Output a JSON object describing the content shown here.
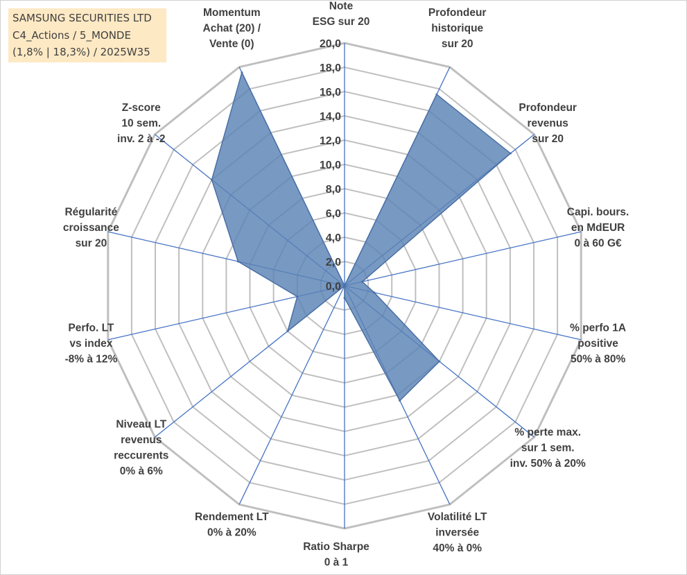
{
  "title_box": {
    "line1": "SAMSUNG SECURITIES LTD",
    "line2": "C4_Actions / 5_MONDE",
    "line3": "(1,8% | 18,3%) / 2025W35"
  },
  "colors": {
    "grid": "#bfbfbf",
    "spoke": "#4472c4",
    "series_fill": "#5a82b4",
    "series_stroke": "#4a6fa5",
    "text": "#404040",
    "title_bg": "#fde9c4"
  },
  "chart_data": {
    "type": "radar",
    "title": "",
    "rmin": 0,
    "rmax": 20,
    "grid_step": 2,
    "tick_labels": [
      "0,0",
      "2,0",
      "4,0",
      "6,0",
      "8,0",
      "10,0",
      "12,0",
      "14,0",
      "16,0",
      "18,0",
      "20,0"
    ],
    "categories": [
      "Note\nESG sur 20",
      "Profondeur\nhistorique\nsur 20",
      "Profondeur\nrevenus\nsur 20",
      "Capi. bours.\nen MdEUR\n0 à 60 G€",
      "% perfo 1A\npositive\n50% à 80%",
      "% perte max.\nsur 1 sem.\ninv. 50% à 20%",
      "Volatilité LT\ninversée\n40% à 0%",
      "Ratio Sharpe\n0 à 1",
      "Rendement LT\n0% à 20%",
      "Niveau LT\nrevenus\nreccurents\n0% à 6%",
      "Perfo. LT\nvs index\n-8% à 12%",
      "Régularité\ncroissance\nsur 20",
      "Z-score\n10 sem.\ninv. 2 à -2",
      "Momentum\nAchat (20) /\nVente (0)"
    ],
    "series": [
      {
        "values": [
          0,
          17.5,
          17.5,
          1.5,
          2.5,
          10.0,
          10.5,
          1.0,
          0,
          6.0,
          4.0,
          9.0,
          14.0,
          19.5
        ]
      }
    ]
  }
}
